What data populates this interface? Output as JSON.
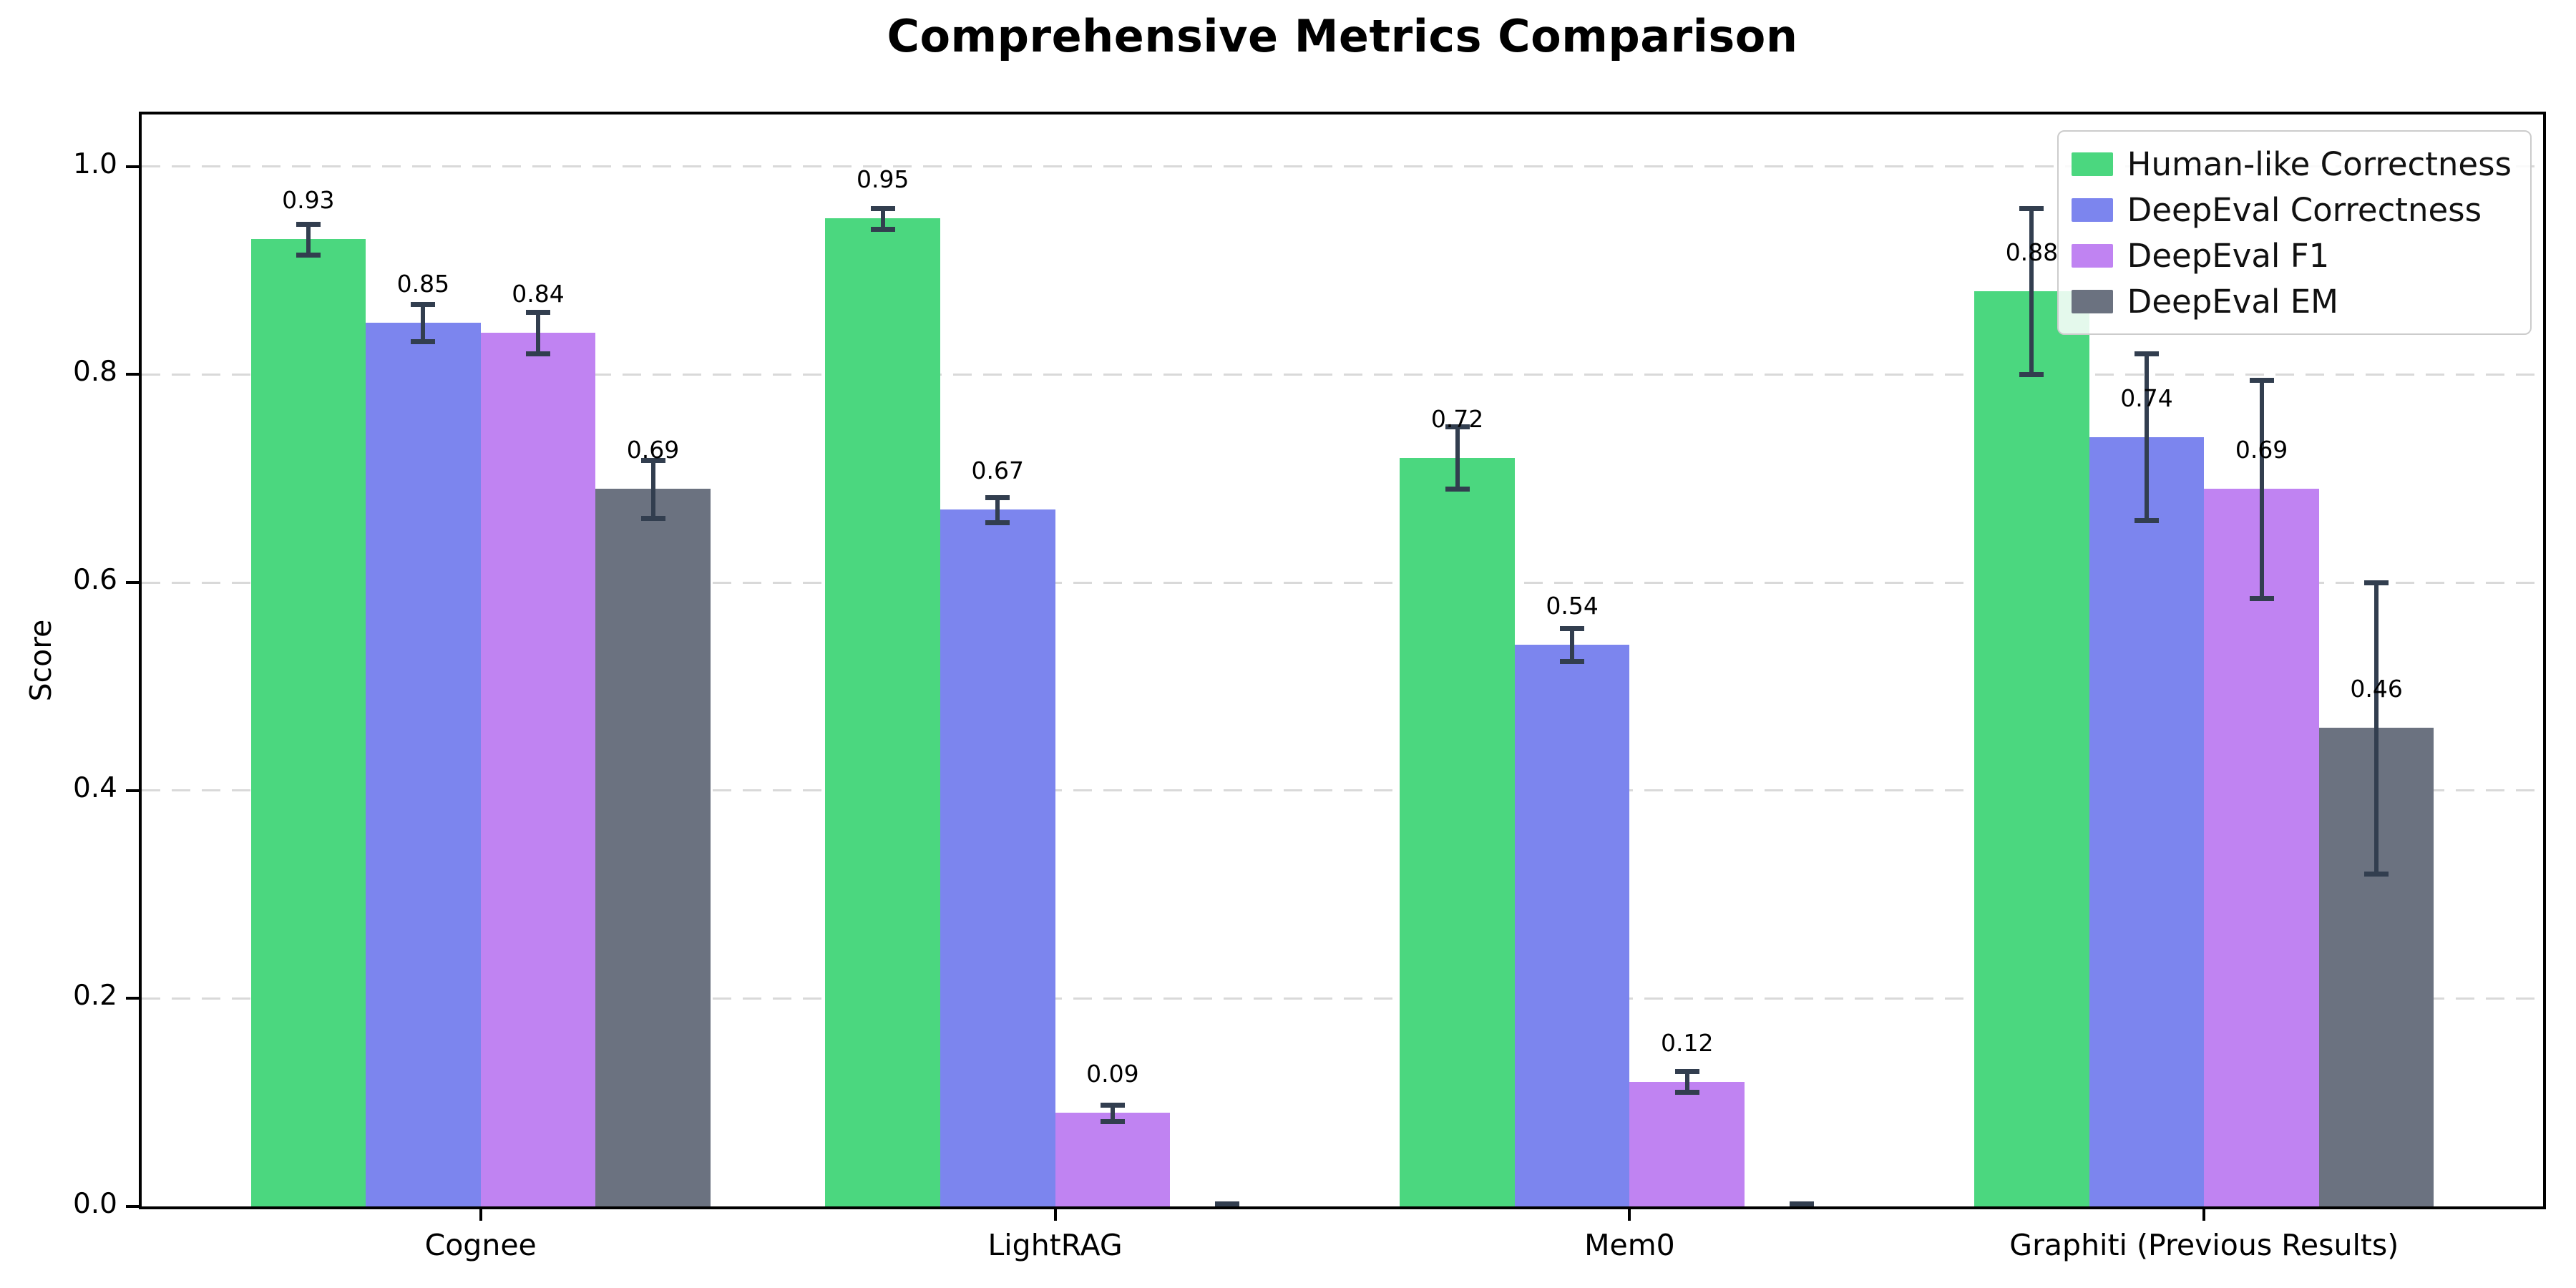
{
  "figure": {
    "title": "Comprehensive Metrics Comparison"
  },
  "chart_data": {
    "type": "bar",
    "title": "Comprehensive Metrics Comparison",
    "xlabel": "",
    "ylabel": "Score",
    "categories": [
      "Cognee",
      "LightRAG",
      "Mem0",
      "Graphiti (Previous Results)"
    ],
    "series": [
      {
        "name": "Human-like Correctness",
        "color": "#4bd77f",
        "values": [
          0.93,
          0.95,
          0.72,
          0.88
        ],
        "errors": [
          0.015,
          0.01,
          0.03,
          0.08
        ]
      },
      {
        "name": "DeepEval Correctness",
        "color": "#7c85ee",
        "values": [
          0.85,
          0.67,
          0.54,
          0.74
        ],
        "errors": [
          0.018,
          0.012,
          0.016,
          0.08
        ]
      },
      {
        "name": "DeepEval F1",
        "color": "#c083f2",
        "values": [
          0.84,
          0.09,
          0.12,
          0.69
        ],
        "errors": [
          0.02,
          0.008,
          0.01,
          0.105
        ]
      },
      {
        "name": "DeepEval EM",
        "color": "#6b7280",
        "values": [
          0.69,
          0.0,
          0.0,
          0.46
        ],
        "errors": [
          0.028,
          0.003,
          0.003,
          0.14
        ]
      }
    ],
    "bar_value_labels": [
      [
        "0.93",
        "0.95",
        "0.72",
        "0.88"
      ],
      [
        "0.85",
        "0.67",
        "0.54",
        "0.74"
      ],
      [
        "0.84",
        "0.09",
        "0.12",
        "0.69"
      ],
      [
        "0.69",
        "",
        "",
        "0.46"
      ]
    ],
    "ylim": [
      0,
      1.05
    ],
    "yticks": [
      0.0,
      0.2,
      0.4,
      0.6,
      0.8,
      1.0
    ],
    "ytick_labels": [
      "0.0",
      "0.2",
      "0.4",
      "0.6",
      "0.8",
      "1.0"
    ],
    "grid": "horizontal-dashed",
    "legend_position": "upper-right",
    "colors": {
      "error_bar": "#323e4f",
      "grid_line": "#d9d9d9",
      "axis_spine": "#000000",
      "background": "#ffffff"
    }
  }
}
